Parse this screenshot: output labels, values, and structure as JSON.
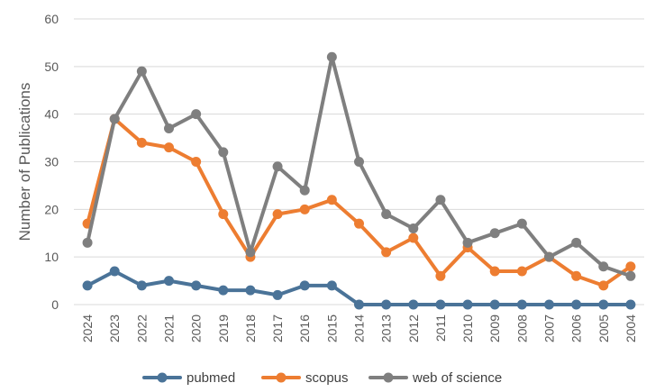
{
  "chart_data": {
    "type": "line",
    "title": "",
    "xlabel": "",
    "ylabel": "Number of Publications",
    "ylim": [
      0,
      60
    ],
    "yticks": [
      0,
      10,
      20,
      30,
      40,
      50,
      60
    ],
    "grid": "horizontal",
    "legend": "bottom",
    "categories": [
      "2024",
      "2023",
      "2022",
      "2021",
      "2020",
      "2019",
      "2018",
      "2017",
      "2016",
      "2015",
      "2014",
      "2013",
      "2012",
      "2011",
      "2010",
      "2009",
      "2008",
      "2007",
      "2006",
      "2005",
      "2004"
    ],
    "series": [
      {
        "name": "pubmed",
        "color": "#4A7398",
        "values": [
          4,
          7,
          4,
          5,
          4,
          3,
          3,
          2,
          4,
          4,
          0,
          0,
          0,
          0,
          0,
          0,
          0,
          0,
          0,
          0,
          0
        ]
      },
      {
        "name": "scopus",
        "color": "#ED7D31",
        "values": [
          17,
          39,
          34,
          33,
          30,
          19,
          10,
          19,
          20,
          22,
          17,
          11,
          14,
          6,
          12,
          7,
          7,
          10,
          6,
          4,
          8
        ]
      },
      {
        "name": "web of science",
        "color": "#7F7F7F",
        "values": [
          13,
          39,
          49,
          37,
          40,
          32,
          11,
          29,
          24,
          52,
          30,
          19,
          16,
          22,
          13,
          15,
          17,
          10,
          13,
          8,
          6
        ]
      }
    ]
  }
}
